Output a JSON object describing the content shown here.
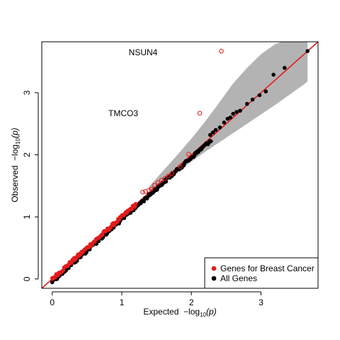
{
  "chart_data": {
    "type": "scatter",
    "title": "",
    "xlabel_prefix": "Expected  ",
    "xlabel_math": "−log",
    "xlabel_sub": "10",
    "xlabel_arg": "(p)",
    "ylabel_prefix": "Observed  ",
    "ylabel_math": "−log",
    "ylabel_sub": "10",
    "ylabel_arg": "(p)",
    "xlim": [
      -0.15,
      3.82
    ],
    "ylim": [
      -0.15,
      3.82
    ],
    "x_ticks": [
      0,
      1,
      2,
      3
    ],
    "y_ticks": [
      0,
      1,
      2,
      3
    ],
    "x_tick_labels": [
      "0",
      "1",
      "2",
      "3"
    ],
    "y_tick_labels": [
      "0",
      "1",
      "2",
      "3"
    ],
    "grid": false,
    "reference_line": {
      "slope": 1,
      "intercept": 0,
      "color": "#e31a1c"
    },
    "confidence_band": {
      "color": "#b3b3b3",
      "upper": [
        [
          1.4,
          1.5
        ],
        [
          1.6,
          1.75
        ],
        [
          1.8,
          2.0
        ],
        [
          2.0,
          2.26
        ],
        [
          2.2,
          2.54
        ],
        [
          2.4,
          2.84
        ],
        [
          2.6,
          3.15
        ],
        [
          2.8,
          3.4
        ],
        [
          3.0,
          3.62
        ],
        [
          3.2,
          3.78
        ],
        [
          3.4,
          3.86
        ],
        [
          3.6,
          3.88
        ],
        [
          3.67,
          3.88
        ]
      ],
      "lower": [
        [
          1.4,
          1.37
        ],
        [
          1.6,
          1.55
        ],
        [
          1.8,
          1.72
        ],
        [
          2.0,
          1.89
        ],
        [
          2.2,
          2.05
        ],
        [
          2.4,
          2.2
        ],
        [
          2.6,
          2.35
        ],
        [
          2.8,
          2.5
        ],
        [
          3.0,
          2.65
        ],
        [
          3.2,
          2.8
        ],
        [
          3.4,
          2.96
        ],
        [
          3.6,
          3.12
        ],
        [
          3.67,
          3.18
        ]
      ]
    },
    "series": [
      {
        "name": "All Genes",
        "color": "#000000",
        "marker": "filled-circle",
        "generated_range": {
          "x_from": 0.0,
          "x_to": 3.0,
          "n": 150
        },
        "points": [
          [
            2.27,
            2.32
          ],
          [
            2.31,
            2.36
          ],
          [
            2.35,
            2.4
          ],
          [
            2.41,
            2.44
          ],
          [
            2.47,
            2.52
          ],
          [
            2.52,
            2.58
          ],
          [
            2.56,
            2.6
          ],
          [
            2.6,
            2.66
          ],
          [
            2.65,
            2.69
          ],
          [
            2.7,
            2.71
          ],
          [
            2.8,
            2.82
          ],
          [
            2.88,
            2.89
          ],
          [
            2.98,
            2.96
          ],
          [
            3.07,
            3.02
          ],
          [
            3.18,
            3.29
          ],
          [
            3.34,
            3.4
          ],
          [
            3.67,
            3.67
          ]
        ]
      },
      {
        "name": "Genes for Breast Cancer",
        "color": "#e31a1c",
        "marker": "filled-circle",
        "generated_range": {
          "x_from": 0.0,
          "x_to": 1.2,
          "n": 90
        },
        "points": []
      },
      {
        "name": "Genes for Breast Cancer (open)",
        "color": "#e31a1c",
        "marker": "open-circle",
        "points": [
          [
            1.3,
            1.4
          ],
          [
            1.34,
            1.41
          ],
          [
            1.39,
            1.43
          ],
          [
            1.42,
            1.45
          ],
          [
            1.47,
            1.51
          ],
          [
            1.52,
            1.55
          ],
          [
            1.57,
            1.59
          ],
          [
            1.62,
            1.62
          ],
          [
            1.67,
            1.66
          ],
          [
            1.72,
            1.7
          ],
          [
            1.84,
            1.81
          ],
          [
            1.96,
            2.01
          ],
          [
            2.12,
            2.67
          ],
          [
            2.43,
            3.67
          ]
        ]
      }
    ],
    "annotations": [
      {
        "text": "NSUN4",
        "x": 1.3,
        "y": 3.67
      },
      {
        "text": "TMCO3",
        "x": 1.02,
        "y": 2.67
      }
    ],
    "legend": {
      "position": "bottom-right",
      "entries": [
        {
          "label": "Genes for Breast Cancer",
          "color": "#e31a1c"
        },
        {
          "label": "All Genes",
          "color": "#000000"
        }
      ]
    }
  }
}
